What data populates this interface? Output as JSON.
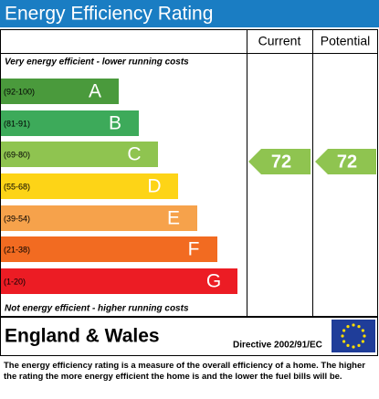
{
  "title": "Energy Efficiency Rating",
  "headers": {
    "current": "Current",
    "potential": "Potential"
  },
  "top_note": "Very energy efficient - lower running costs",
  "bottom_note": "Not energy efficient - higher running costs",
  "bands": [
    {
      "range": "(92-100)",
      "letter": "A",
      "color": "#4a9a3c"
    },
    {
      "range": "(81-91)",
      "letter": "B",
      "color": "#3daa5a"
    },
    {
      "range": "(69-80)",
      "letter": "C",
      "color": "#8fc450"
    },
    {
      "range": "(55-68)",
      "letter": "D",
      "color": "#fdd417"
    },
    {
      "range": "(39-54)",
      "letter": "E",
      "color": "#f6a24b"
    },
    {
      "range": "(21-38)",
      "letter": "F",
      "color": "#f26b21"
    },
    {
      "range": "(1-20)",
      "letter": "G",
      "color": "#ec1c24"
    }
  ],
  "current": {
    "value": 72,
    "color": "#8fc450"
  },
  "potential": {
    "value": 72,
    "color": "#8fc450"
  },
  "footer": {
    "region": "England & Wales",
    "directive": "Directive 2002/91/EC"
  },
  "description": "The energy efficiency rating is a measure of the overall efficiency of a home. The higher the rating the more energy efficient the home is and the lower the fuel bills will be."
}
